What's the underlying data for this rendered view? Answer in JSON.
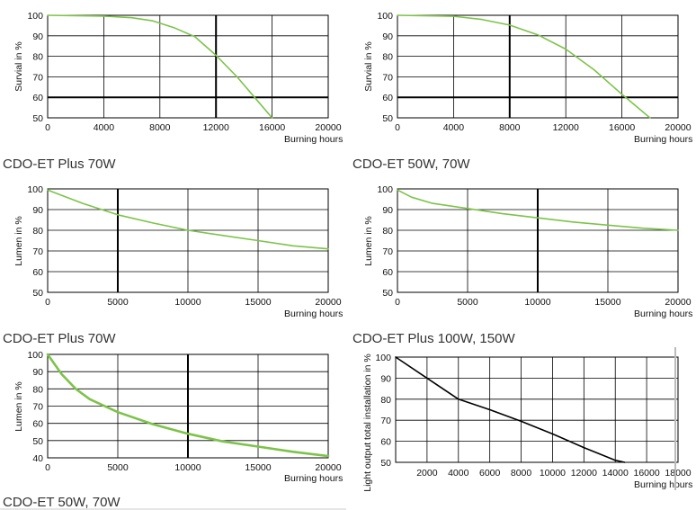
{
  "colors": {
    "green": "#7dc34a",
    "black": "#000000",
    "cursor": "#bbbbbb"
  },
  "chart_data": [
    {
      "type": "line",
      "ylabel": "Survial in %",
      "xlabel": "Burning hours",
      "caption": "CDO-ET Plus 70W",
      "xlim": [
        0,
        20000
      ],
      "ylim": [
        50,
        100
      ],
      "xticks": [
        0,
        4000,
        8000,
        12000,
        16000,
        20000
      ],
      "xtick_labels": [
        "0",
        "4000",
        "8000",
        "12000",
        "16000",
        "20000"
      ],
      "yticks": [
        50,
        60,
        70,
        80,
        90,
        100
      ],
      "ytick_labels": [
        "50",
        "60",
        "70",
        "80",
        "90",
        "100"
      ],
      "bold_x": [
        12000
      ],
      "bold_y": [
        60
      ],
      "grid": true,
      "series": [
        {
          "color": "#7dc34a",
          "x": [
            0,
            4000,
            6000,
            7500,
            9000,
            10500,
            12000,
            13500,
            15000,
            16000
          ],
          "y": [
            100,
            99.6,
            98.8,
            97.3,
            94,
            89.5,
            80.5,
            70,
            58,
            50
          ]
        }
      ]
    },
    {
      "type": "line",
      "ylabel": "Survial in %",
      "xlabel": "Burning hours",
      "caption": "CDO-ET 50W, 70W",
      "xlim": [
        0,
        20000
      ],
      "ylim": [
        50,
        100
      ],
      "xticks": [
        0,
        4000,
        8000,
        12000,
        16000,
        20000
      ],
      "xtick_labels": [
        "0",
        "4000",
        "8000",
        "12000",
        "16000",
        "20000"
      ],
      "yticks": [
        50,
        60,
        70,
        80,
        90,
        100
      ],
      "ytick_labels": [
        "50",
        "60",
        "70",
        "80",
        "90",
        "100"
      ],
      "bold_x": [
        8000
      ],
      "bold_y": [
        60
      ],
      "grid": true,
      "series": [
        {
          "color": "#7dc34a",
          "x": [
            0,
            4000,
            6000,
            8000,
            10000,
            12000,
            14000,
            16000,
            18000
          ],
          "y": [
            100,
            99.5,
            98,
            95.2,
            90.5,
            83.5,
            73.5,
            61.5,
            50
          ]
        }
      ]
    },
    {
      "type": "line",
      "ylabel": "Lumen in %",
      "xlabel": "Burning hours",
      "caption": "CDO-ET Plus 70W",
      "xlim": [
        0,
        20000
      ],
      "ylim": [
        50,
        100
      ],
      "xticks": [
        0,
        5000,
        10000,
        15000,
        20000
      ],
      "xtick_labels": [
        "0",
        "5000",
        "10000",
        "15000",
        "20000"
      ],
      "yticks": [
        50,
        60,
        70,
        80,
        90,
        100
      ],
      "ytick_labels": [
        "50",
        "60",
        "70",
        "80",
        "90",
        "100"
      ],
      "bold_x": [
        5000
      ],
      "bold_y": [],
      "grid": true,
      "series": [
        {
          "color": "#7dc34a",
          "x": [
            0,
            2500,
            5000,
            7500,
            10000,
            12500,
            15000,
            17500,
            20000
          ],
          "y": [
            99.5,
            93,
            87.5,
            83.5,
            80,
            77.5,
            75,
            72.5,
            71
          ]
        }
      ]
    },
    {
      "type": "line",
      "ylabel": "Lumen in %",
      "xlabel": "Burning hours",
      "caption": "CDO-ET Plus 100W, 150W",
      "xlim": [
        0,
        20000
      ],
      "ylim": [
        50,
        100
      ],
      "xticks": [
        0,
        5000,
        10000,
        15000,
        20000
      ],
      "xtick_labels": [
        "0",
        "5000",
        "10000",
        "15000",
        "20000"
      ],
      "yticks": [
        50,
        60,
        70,
        80,
        90,
        100
      ],
      "ytick_labels": [
        "50",
        "60",
        "70",
        "80",
        "90",
        "100"
      ],
      "bold_x": [
        10000
      ],
      "bold_y": [],
      "grid": true,
      "series": [
        {
          "color": "#7dc34a",
          "x": [
            0,
            1000,
            2500,
            5000,
            7500,
            10000,
            12500,
            15000,
            17500,
            20000
          ],
          "y": [
            99.5,
            96,
            93,
            90.5,
            88,
            86,
            84,
            82.5,
            81,
            80
          ]
        }
      ]
    },
    {
      "type": "line",
      "ylabel": "Lumen in %",
      "xlabel": "Burning hours",
      "caption": "CDO-ET 50W, 70W",
      "xlim": [
        0,
        20000
      ],
      "ylim": [
        40,
        100
      ],
      "xticks": [
        0,
        5000,
        10000,
        15000,
        20000
      ],
      "xtick_labels": [
        "0",
        "5000",
        "10000",
        "15000",
        "20000"
      ],
      "yticks": [
        40,
        50,
        60,
        70,
        80,
        90,
        100
      ],
      "ytick_labels": [
        "40",
        "50",
        "60",
        "70",
        "80",
        "90",
        "100"
      ],
      "bold_x": [
        10000
      ],
      "bold_y": [],
      "grid": true,
      "series": [
        {
          "color": "#7dc34a",
          "x": [
            0,
            1000,
            2000,
            3000,
            5000,
            7500,
            10000,
            12500,
            15000,
            17500,
            20000
          ],
          "y": [
            100,
            88.5,
            80,
            74,
            66.5,
            59.5,
            54,
            49.5,
            46.5,
            43.5,
            41
          ]
        }
      ]
    },
    {
      "type": "line",
      "ylabel": "Light output total installation in %",
      "xlabel": "Burning hours",
      "caption": "",
      "xlim": [
        0,
        18000
      ],
      "ylim": [
        50,
        100
      ],
      "xticks": [
        2000,
        4000,
        6000,
        8000,
        10000,
        12000,
        14000,
        16000,
        18000
      ],
      "xtick_labels": [
        "2000",
        "4000",
        "6000",
        "8000",
        "10000",
        "12000",
        "14000",
        "16000",
        "18000"
      ],
      "yticks": [
        50,
        60,
        70,
        80,
        90,
        100
      ],
      "ytick_labels": [
        "50",
        "60",
        "70",
        "80",
        "90",
        "100"
      ],
      "bold_x": [],
      "bold_y": [],
      "grid": true,
      "series": [
        {
          "color": "#000000",
          "x": [
            0,
            2000,
            4000,
            6000,
            8000,
            10000,
            12000,
            14000,
            14600
          ],
          "y": [
            100,
            90,
            80,
            75,
            69.5,
            63.5,
            57,
            51,
            50
          ]
        }
      ]
    }
  ]
}
